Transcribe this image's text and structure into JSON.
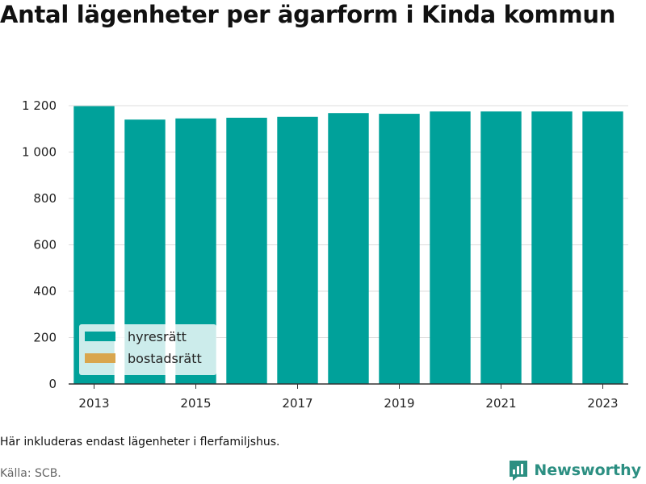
{
  "title": "Antal lägenheter per ägarform i Kinda kommun",
  "footnote": "Här inkluderas endast lägenheter i flerfamiljshus.",
  "source": "Källa: SCB.",
  "brand": {
    "name": "Newsworthy",
    "icon": "newsworthy-logo-icon",
    "color": "#2c8f82"
  },
  "chart_data": {
    "type": "bar",
    "categories": [
      "2013",
      "2014",
      "2015",
      "2016",
      "2017",
      "2018",
      "2019",
      "2020",
      "2021",
      "2022",
      "2023"
    ],
    "x_tick_labels": [
      "2013",
      "2015",
      "2017",
      "2019",
      "2021",
      "2023"
    ],
    "series": [
      {
        "name": "hyresrätt",
        "color": "#00a19a",
        "values": [
          1198,
          1140,
          1145,
          1148,
          1152,
          1168,
          1165,
          1175,
          1175,
          1175,
          1175
        ]
      },
      {
        "name": "bostadsrätt",
        "color": "#d9a64e",
        "values": [
          0,
          0,
          0,
          0,
          0,
          0,
          0,
          0,
          0,
          0,
          0
        ]
      }
    ],
    "ylim": [
      0,
      1200
    ],
    "y_ticks": [
      0,
      200,
      400,
      600,
      800,
      1000,
      1200
    ],
    "y_tick_labels": [
      "0",
      "200",
      "400",
      "600",
      "800",
      "1 000",
      "1 200"
    ],
    "grid": true,
    "legend": "bottom-left"
  }
}
